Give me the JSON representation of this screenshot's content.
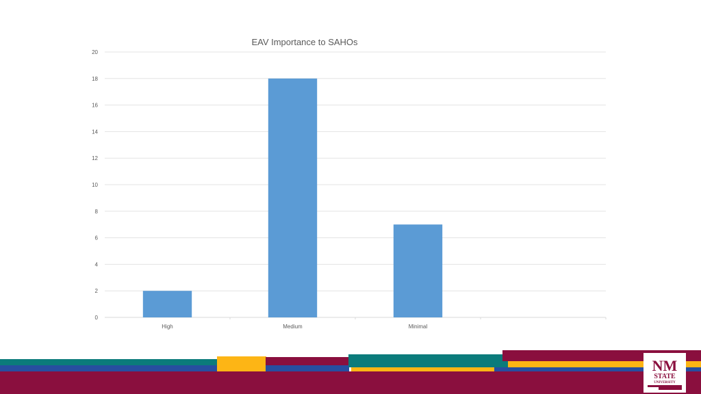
{
  "chart_data": {
    "type": "bar",
    "title": "EAV Importance to SAHOs",
    "categories": [
      "High",
      "Medium",
      "Minimal",
      ""
    ],
    "values": [
      2,
      18,
      7,
      null
    ],
    "ylim": [
      0,
      20
    ],
    "yticks": [
      0,
      2,
      4,
      6,
      8,
      10,
      12,
      14,
      16,
      18,
      20
    ],
    "xlabel": "",
    "ylabel": "",
    "grid": true,
    "legend": "none",
    "bar_color": "#5b9bd5"
  },
  "branding": {
    "logo_line1": "NM",
    "logo_line2": "STATE",
    "logo_line3": "UNIVERSITY",
    "colors": {
      "crimson": "#8a0f3e",
      "teal": "#0b7b7b",
      "gold": "#fdb515",
      "blue": "#274ea0"
    }
  }
}
